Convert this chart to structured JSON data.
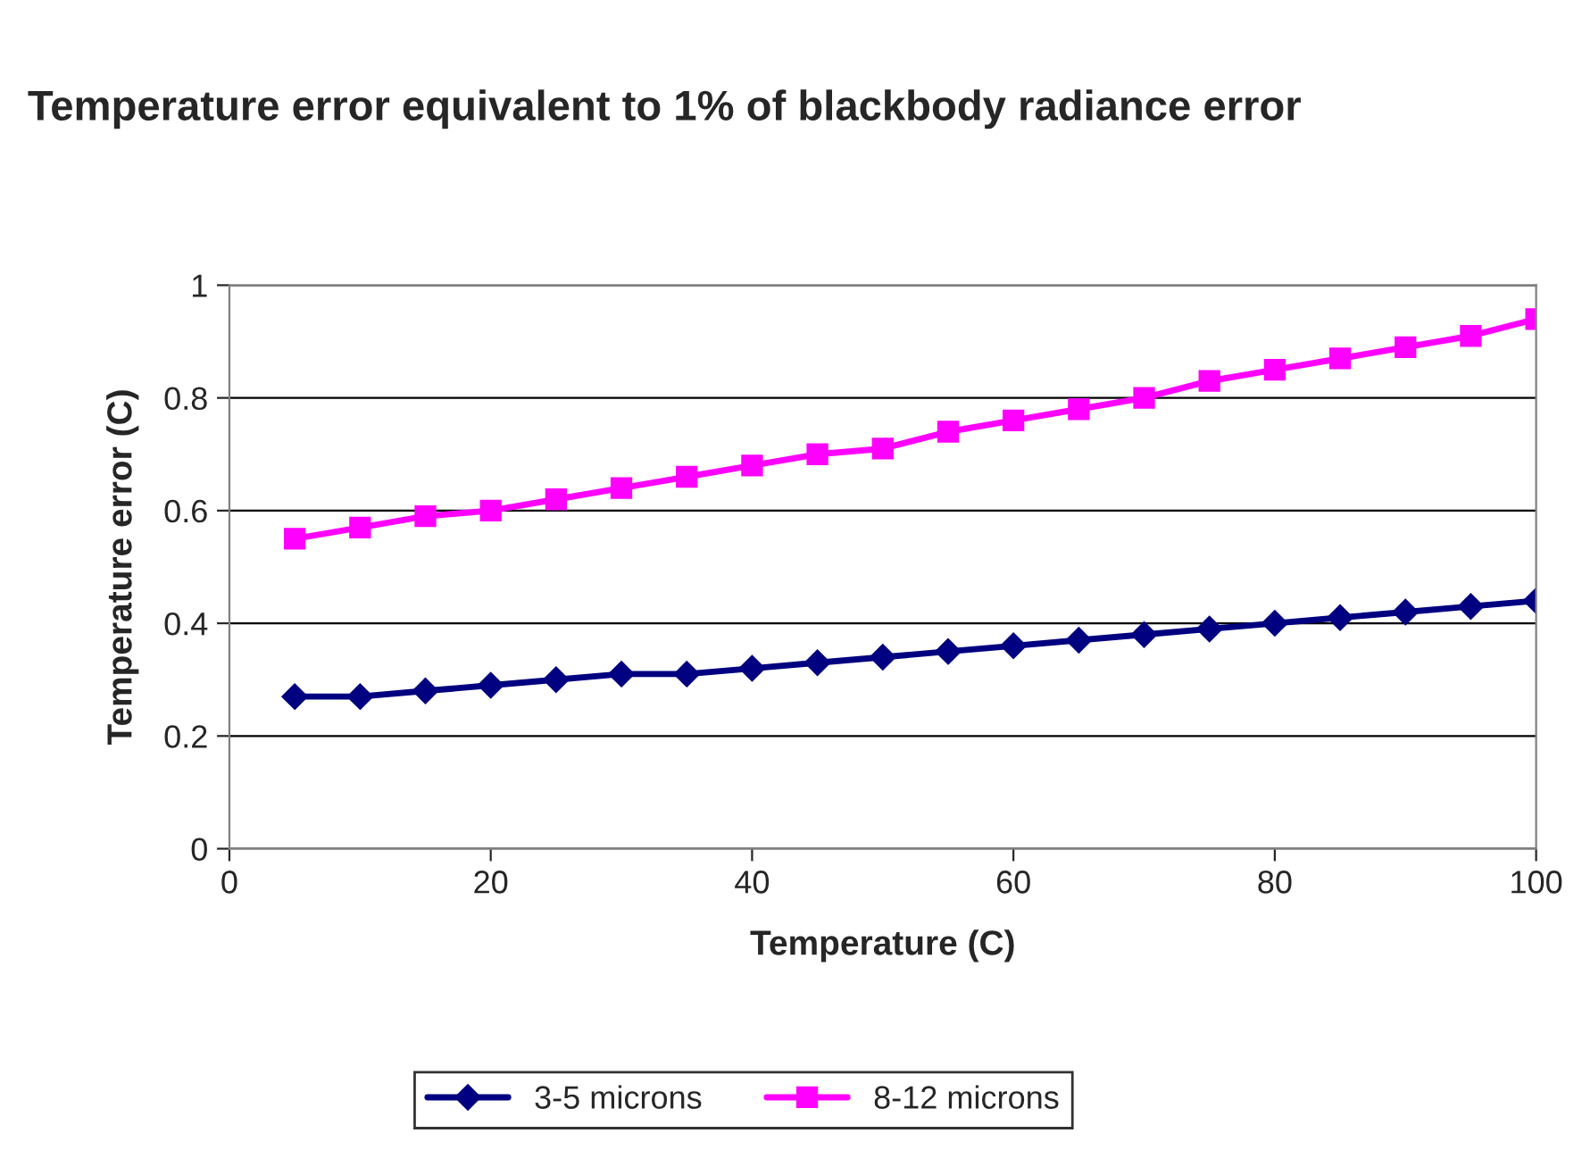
{
  "chart_data": {
    "type": "line",
    "title": "Temperature error equivalent to 1% of blackbody radiance error",
    "xlabel": "Temperature (C)",
    "ylabel": "Temperature error (C)",
    "x": [
      5,
      10,
      15,
      20,
      25,
      30,
      35,
      40,
      45,
      50,
      55,
      60,
      65,
      70,
      75,
      80,
      85,
      90,
      95,
      100
    ],
    "series": [
      {
        "name": "3-5 microns",
        "color": "#000080",
        "marker": "diamond",
        "values": [
          0.27,
          0.27,
          0.28,
          0.29,
          0.3,
          0.31,
          0.31,
          0.32,
          0.33,
          0.34,
          0.35,
          0.36,
          0.37,
          0.38,
          0.39,
          0.4,
          0.41,
          0.42,
          0.43,
          0.44
        ]
      },
      {
        "name": "8-12 microns",
        "color": "#ff00ff",
        "marker": "square",
        "values": [
          0.55,
          0.57,
          0.59,
          0.6,
          0.62,
          0.64,
          0.66,
          0.68,
          0.7,
          0.71,
          0.74,
          0.76,
          0.78,
          0.8,
          0.83,
          0.85,
          0.87,
          0.89,
          0.91,
          0.94
        ]
      }
    ],
    "xlim": [
      0,
      100
    ],
    "xticks": [
      0,
      20,
      40,
      60,
      80,
      100
    ],
    "ylim": [
      0,
      1
    ],
    "yticks": [
      0,
      0.2,
      0.4,
      0.6,
      0.8,
      1
    ],
    "grid": "y",
    "legend": "bottom",
    "line_style": "solid"
  }
}
